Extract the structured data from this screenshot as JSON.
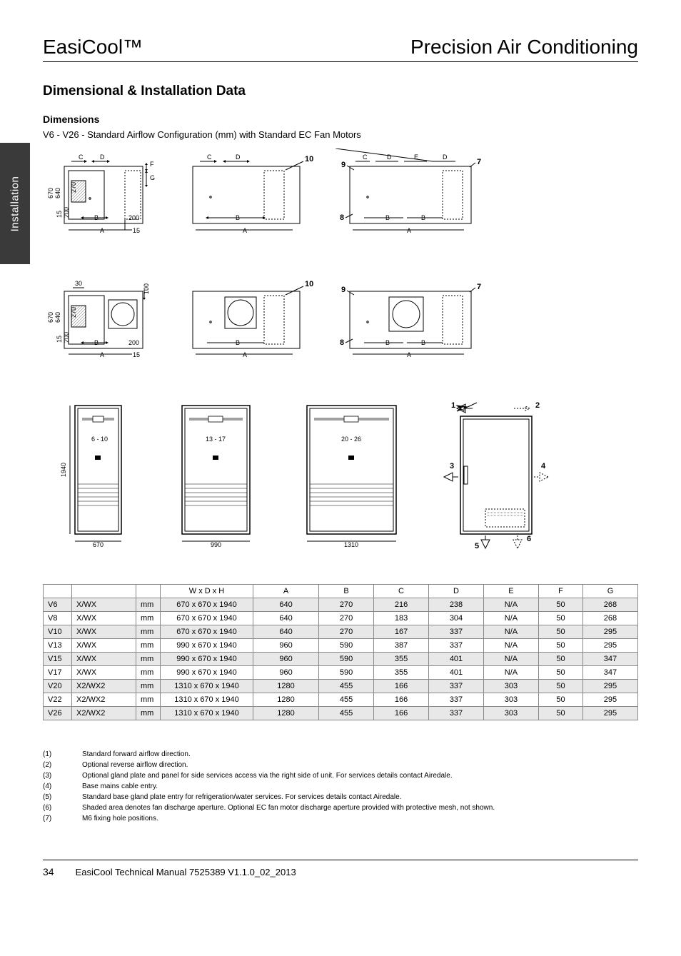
{
  "brand": "EasiCool™",
  "product": "Precision Air Conditioning",
  "side_tab": "Installation",
  "section_title": "Dimensional & Installation Data",
  "subsection": "Dimensions",
  "config_line": "V6 - V26 - Standard Airflow Configuration (mm) with Standard EC Fan Motors",
  "page_num": "34",
  "doc_ref": "EasiCool Technical Manual 7525389 V1.1.0_02_2013",
  "row1_diag1": {
    "outer_h": "670",
    "mid_h": "640",
    "inner_h": "270",
    "b_off": "200",
    "b_base": "15",
    "right_b": "200",
    "right_15": "15",
    "C": "C",
    "D": "D",
    "F": "F",
    "G": "G",
    "B": "B",
    "A": "A"
  },
  "row1_diag2": {
    "C": "C",
    "D": "D",
    "B": "B",
    "A": "A",
    "note10": "10"
  },
  "row1_diag3": {
    "C": "C",
    "D": "D",
    "E": "E",
    "D2": "D",
    "n9": "9",
    "n8": "8",
    "n7": "7",
    "B": "B",
    "B2": "B",
    "A": "A"
  },
  "row2_diag1": {
    "outer_h": "670",
    "mid_h": "640",
    "inner_h": "270",
    "b_off": "200",
    "b_base": "15",
    "top30": "30",
    "top100": "100",
    "right_b": "200",
    "right_15": "15",
    "B": "B",
    "A": "A"
  },
  "row2_diag2": {
    "B": "B",
    "A": "A",
    "note10": "10"
  },
  "row2_diag3": {
    "n9": "9",
    "n8": "8",
    "n7": "7",
    "B": "B",
    "B2": "B",
    "A": "A"
  },
  "row3": {
    "h": "1940",
    "w1": "670",
    "range1": "6 - 10",
    "w2": "990",
    "range2": "13 - 17",
    "w3": "1310",
    "range3": "20 - 26",
    "legend": {
      "n1": "1",
      "n2": "2",
      "n3": "3",
      "n4": "4",
      "n5": "5",
      "n6": "6"
    }
  },
  "table": {
    "columns": [
      "",
      "",
      "",
      "W x  D x H",
      "A",
      "B",
      "C",
      "D",
      "E",
      "F",
      "G"
    ],
    "rows": [
      {
        "shade": true,
        "cells": [
          "V6",
          "X/WX",
          "mm",
          "670 x 670 x 1940",
          "640",
          "270",
          "216",
          "238",
          "N/A",
          "50",
          "268"
        ]
      },
      {
        "shade": false,
        "cells": [
          "V8",
          "X/WX",
          "mm",
          "670 x 670 x 1940",
          "640",
          "270",
          "183",
          "304",
          "N/A",
          "50",
          "268"
        ]
      },
      {
        "shade": true,
        "cells": [
          "V10",
          "X/WX",
          "mm",
          "670 x 670 x 1940",
          "640",
          "270",
          "167",
          "337",
          "N/A",
          "50",
          "295"
        ]
      },
      {
        "shade": false,
        "cells": [
          "V13",
          "X/WX",
          "mm",
          "990 x 670 x 1940",
          "960",
          "590",
          "387",
          "337",
          "N/A",
          "50",
          "295"
        ]
      },
      {
        "shade": true,
        "cells": [
          "V15",
          "X/WX",
          "mm",
          "990 x 670 x 1940",
          "960",
          "590",
          "355",
          "401",
          "N/A",
          "50",
          "347"
        ]
      },
      {
        "shade": false,
        "cells": [
          "V17",
          "X/WX",
          "mm",
          "990 x 670 x 1940",
          "960",
          "590",
          "355",
          "401",
          "N/A",
          "50",
          "347"
        ]
      },
      {
        "shade": true,
        "cells": [
          "V20",
          "X2/WX2",
          "mm",
          "1310 x 670 x 1940",
          "1280",
          "455",
          "166",
          "337",
          "303",
          "50",
          "295"
        ]
      },
      {
        "shade": false,
        "cells": [
          "V22",
          "X2/WX2",
          "mm",
          "1310 x 670 x 1940",
          "1280",
          "455",
          "166",
          "337",
          "303",
          "50",
          "295"
        ]
      },
      {
        "shade": true,
        "cells": [
          "V26",
          "X2/WX2",
          "mm",
          "1310 x 670 x 1940",
          "1280",
          "455",
          "166",
          "337",
          "303",
          "50",
          "295"
        ]
      }
    ]
  },
  "notes": [
    {
      "num": "(1)",
      "text": "Standard forward airflow direction."
    },
    {
      "num": "(2)",
      "text": "Optional reverse airflow direction."
    },
    {
      "num": "(3)",
      "text": "Optional gland plate and panel for side services access via the right side of unit. For services details contact Airedale."
    },
    {
      "num": "(4)",
      "text": "Base mains cable entry."
    },
    {
      "num": "(5)",
      "text": "Standard base gland plate entry for refrigeration/water services. For services details contact Airedale."
    },
    {
      "num": "(6)",
      "text": "Shaded area denotes fan discharge aperture. Optional EC fan motor discharge aperture provided with protective mesh, not shown."
    },
    {
      "num": "(7)",
      "text": "M6 fixing hole positions."
    }
  ],
  "colors": {
    "page_bg": "#ffffff",
    "text": "#000000",
    "rule": "#000000",
    "hatch": "#888888",
    "table_border": "#888888",
    "row_shade": "#e8e8e8",
    "side_tab_bg": "#3a3a3a"
  }
}
